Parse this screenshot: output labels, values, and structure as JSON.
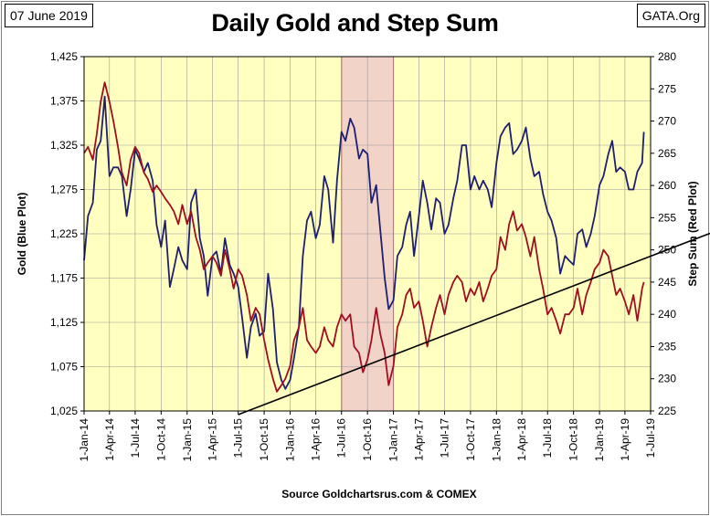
{
  "header": {
    "date": "07 June 2019",
    "source_tag": "GATA.Org"
  },
  "footer": {
    "source": "Source Goldchartsrus.com & COMEX"
  },
  "chart_data": {
    "type": "line",
    "title": "Daily Gold and Step Sum",
    "ylabel_left": "Gold   (Blue Plot)",
    "ylabel_right": "Step Sum   (Red Plot)",
    "y_left": {
      "min": 1025,
      "max": 1425,
      "ticks": [
        1025,
        1075,
        1125,
        1175,
        1225,
        1275,
        1325,
        1375,
        1425
      ],
      "tick_labels": [
        "1,025",
        "1,075",
        "1,125",
        "1,175",
        "1,225",
        "1,275",
        "1,325",
        "1,375",
        "1,425"
      ]
    },
    "y_right": {
      "min": 225,
      "max": 280,
      "ticks": [
        225,
        230,
        235,
        240,
        245,
        250,
        255,
        260,
        265,
        270,
        275,
        280
      ],
      "tick_labels": [
        "225",
        "230",
        "235",
        "240",
        "245",
        "250",
        "255",
        "260",
        "265",
        "270",
        "275",
        "280"
      ]
    },
    "x_ticks": [
      "1-Jan-14",
      "1-Apr-14",
      "1-Jul-14",
      "1-Oct-14",
      "1-Jan-15",
      "1-Apr-15",
      "1-Jul-15",
      "1-Oct-15",
      "1-Jan-16",
      "1-Apr-16",
      "1-Jul-16",
      "1-Oct-16",
      "1-Jan-17",
      "1-Apr-17",
      "1-Jul-17",
      "1-Oct-17",
      "1-Jan-18",
      "1-Apr-18",
      "1-Jul-18",
      "1-Oct-18",
      "1-Jan-19",
      "1-Apr-19",
      "1-Jul-19"
    ],
    "grid": true,
    "highlight_region": {
      "from": "2016-07-01",
      "to": "2017-01-01",
      "color": "#f2d3c8"
    },
    "trend_line": {
      "axis": "right",
      "from": {
        "x": "2015-07-01",
        "y": 225
      },
      "to": {
        "x": "2019-07-01",
        "y": 252
      },
      "color": "#000000"
    },
    "series": [
      {
        "axis": "left",
        "color": "#1f1f70",
        "points": [
          [
            "2014-01-01",
            1195
          ],
          [
            "2014-01-15",
            1245
          ],
          [
            "2014-02-01",
            1260
          ],
          [
            "2014-02-15",
            1320
          ],
          [
            "2014-03-01",
            1330
          ],
          [
            "2014-03-15",
            1380
          ],
          [
            "2014-04-01",
            1290
          ],
          [
            "2014-04-15",
            1300
          ],
          [
            "2014-05-01",
            1300
          ],
          [
            "2014-05-15",
            1290
          ],
          [
            "2014-06-01",
            1245
          ],
          [
            "2014-06-15",
            1275
          ],
          [
            "2014-07-01",
            1320
          ],
          [
            "2014-07-15",
            1310
          ],
          [
            "2014-08-01",
            1295
          ],
          [
            "2014-08-15",
            1305
          ],
          [
            "2014-09-01",
            1285
          ],
          [
            "2014-09-15",
            1235
          ],
          [
            "2014-10-01",
            1210
          ],
          [
            "2014-10-15",
            1240
          ],
          [
            "2014-11-01",
            1165
          ],
          [
            "2014-11-15",
            1185
          ],
          [
            "2014-12-01",
            1210
          ],
          [
            "2014-12-15",
            1195
          ],
          [
            "2015-01-01",
            1185
          ],
          [
            "2015-01-15",
            1260
          ],
          [
            "2015-02-01",
            1275
          ],
          [
            "2015-02-15",
            1220
          ],
          [
            "2015-03-01",
            1200
          ],
          [
            "2015-03-15",
            1155
          ],
          [
            "2015-04-01",
            1200
          ],
          [
            "2015-04-15",
            1205
          ],
          [
            "2015-05-01",
            1180
          ],
          [
            "2015-05-15",
            1220
          ],
          [
            "2015-06-01",
            1190
          ],
          [
            "2015-06-15",
            1180
          ],
          [
            "2015-07-01",
            1165
          ],
          [
            "2015-07-15",
            1130
          ],
          [
            "2015-08-01",
            1085
          ],
          [
            "2015-08-15",
            1120
          ],
          [
            "2015-09-01",
            1135
          ],
          [
            "2015-09-15",
            1110
          ],
          [
            "2015-10-01",
            1115
          ],
          [
            "2015-10-15",
            1180
          ],
          [
            "2015-11-01",
            1140
          ],
          [
            "2015-11-15",
            1080
          ],
          [
            "2015-12-01",
            1060
          ],
          [
            "2015-12-15",
            1050
          ],
          [
            "2016-01-01",
            1060
          ],
          [
            "2016-01-15",
            1085
          ],
          [
            "2016-02-01",
            1120
          ],
          [
            "2016-02-15",
            1200
          ],
          [
            "2016-03-01",
            1240
          ],
          [
            "2016-03-15",
            1250
          ],
          [
            "2016-04-01",
            1220
          ],
          [
            "2016-04-15",
            1235
          ],
          [
            "2016-05-01",
            1290
          ],
          [
            "2016-05-15",
            1275
          ],
          [
            "2016-06-01",
            1215
          ],
          [
            "2016-06-15",
            1285
          ],
          [
            "2016-07-01",
            1340
          ],
          [
            "2016-07-15",
            1330
          ],
          [
            "2016-08-01",
            1355
          ],
          [
            "2016-08-15",
            1345
          ],
          [
            "2016-09-01",
            1310
          ],
          [
            "2016-09-15",
            1320
          ],
          [
            "2016-10-01",
            1315
          ],
          [
            "2016-10-15",
            1260
          ],
          [
            "2016-11-01",
            1280
          ],
          [
            "2016-11-15",
            1230
          ],
          [
            "2016-12-01",
            1175
          ],
          [
            "2016-12-15",
            1140
          ],
          [
            "2017-01-01",
            1150
          ],
          [
            "2017-01-15",
            1200
          ],
          [
            "2017-02-01",
            1210
          ],
          [
            "2017-02-15",
            1235
          ],
          [
            "2017-03-01",
            1250
          ],
          [
            "2017-03-15",
            1200
          ],
          [
            "2017-04-01",
            1245
          ],
          [
            "2017-04-15",
            1285
          ],
          [
            "2017-05-01",
            1260
          ],
          [
            "2017-05-15",
            1230
          ],
          [
            "2017-06-01",
            1265
          ],
          [
            "2017-06-15",
            1260
          ],
          [
            "2017-07-01",
            1225
          ],
          [
            "2017-07-15",
            1235
          ],
          [
            "2017-08-01",
            1265
          ],
          [
            "2017-08-15",
            1285
          ],
          [
            "2017-09-01",
            1325
          ],
          [
            "2017-09-15",
            1325
          ],
          [
            "2017-10-01",
            1275
          ],
          [
            "2017-10-15",
            1290
          ],
          [
            "2017-11-01",
            1275
          ],
          [
            "2017-11-15",
            1285
          ],
          [
            "2017-12-01",
            1275
          ],
          [
            "2017-12-15",
            1255
          ],
          [
            "2018-01-01",
            1305
          ],
          [
            "2018-01-15",
            1335
          ],
          [
            "2018-02-01",
            1345
          ],
          [
            "2018-02-15",
            1350
          ],
          [
            "2018-03-01",
            1315
          ],
          [
            "2018-03-15",
            1320
          ],
          [
            "2018-04-01",
            1330
          ],
          [
            "2018-04-15",
            1345
          ],
          [
            "2018-05-01",
            1310
          ],
          [
            "2018-05-15",
            1290
          ],
          [
            "2018-06-01",
            1295
          ],
          [
            "2018-06-15",
            1270
          ],
          [
            "2018-07-01",
            1250
          ],
          [
            "2018-07-15",
            1240
          ],
          [
            "2018-08-01",
            1220
          ],
          [
            "2018-08-15",
            1180
          ],
          [
            "2018-09-01",
            1200
          ],
          [
            "2018-09-15",
            1195
          ],
          [
            "2018-10-01",
            1190
          ],
          [
            "2018-10-15",
            1225
          ],
          [
            "2018-11-01",
            1230
          ],
          [
            "2018-11-15",
            1210
          ],
          [
            "2018-12-01",
            1225
          ],
          [
            "2018-12-15",
            1245
          ],
          [
            "2019-01-01",
            1280
          ],
          [
            "2019-01-15",
            1290
          ],
          [
            "2019-02-01",
            1315
          ],
          [
            "2019-02-15",
            1330
          ],
          [
            "2019-03-01",
            1295
          ],
          [
            "2019-03-15",
            1300
          ],
          [
            "2019-04-01",
            1295
          ],
          [
            "2019-04-15",
            1275
          ],
          [
            "2019-05-01",
            1275
          ],
          [
            "2019-05-15",
            1295
          ],
          [
            "2019-06-01",
            1305
          ],
          [
            "2019-06-07",
            1340
          ]
        ]
      },
      {
        "axis": "right",
        "color": "#a10e1f",
        "points": [
          [
            "2014-01-01",
            265
          ],
          [
            "2014-01-15",
            266
          ],
          [
            "2014-02-01",
            264
          ],
          [
            "2014-02-15",
            268
          ],
          [
            "2014-03-01",
            273
          ],
          [
            "2014-03-15",
            276
          ],
          [
            "2014-04-01",
            273
          ],
          [
            "2014-04-15",
            270
          ],
          [
            "2014-05-01",
            266
          ],
          [
            "2014-05-15",
            262
          ],
          [
            "2014-06-01",
            260
          ],
          [
            "2014-06-15",
            264
          ],
          [
            "2014-07-01",
            266
          ],
          [
            "2014-07-15",
            265
          ],
          [
            "2014-08-01",
            262
          ],
          [
            "2014-08-15",
            261
          ],
          [
            "2014-09-01",
            259
          ],
          [
            "2014-09-15",
            260
          ],
          [
            "2014-10-01",
            259
          ],
          [
            "2014-10-15",
            258
          ],
          [
            "2014-11-01",
            257
          ],
          [
            "2014-11-15",
            256
          ],
          [
            "2014-12-01",
            254
          ],
          [
            "2014-12-15",
            257
          ],
          [
            "2015-01-01",
            254
          ],
          [
            "2015-01-15",
            256
          ],
          [
            "2015-02-01",
            252
          ],
          [
            "2015-02-15",
            250
          ],
          [
            "2015-03-01",
            247
          ],
          [
            "2015-03-15",
            248
          ],
          [
            "2015-04-01",
            249
          ],
          [
            "2015-04-15",
            248
          ],
          [
            "2015-05-01",
            246
          ],
          [
            "2015-05-15",
            250
          ],
          [
            "2015-06-01",
            247
          ],
          [
            "2015-06-15",
            244
          ],
          [
            "2015-07-01",
            247
          ],
          [
            "2015-07-15",
            246
          ],
          [
            "2015-08-01",
            243
          ],
          [
            "2015-08-15",
            239
          ],
          [
            "2015-09-01",
            241
          ],
          [
            "2015-09-15",
            240
          ],
          [
            "2015-10-01",
            236
          ],
          [
            "2015-10-15",
            233
          ],
          [
            "2015-11-01",
            230
          ],
          [
            "2015-11-15",
            228
          ],
          [
            "2015-12-01",
            229
          ],
          [
            "2015-12-15",
            230
          ],
          [
            "2016-01-01",
            232
          ],
          [
            "2016-01-15",
            236
          ],
          [
            "2016-02-01",
            238
          ],
          [
            "2016-02-15",
            241
          ],
          [
            "2016-03-01",
            236
          ],
          [
            "2016-03-15",
            235
          ],
          [
            "2016-04-01",
            234
          ],
          [
            "2016-04-15",
            235
          ],
          [
            "2016-05-01",
            238
          ],
          [
            "2016-05-15",
            236
          ],
          [
            "2016-06-01",
            235
          ],
          [
            "2016-06-15",
            238
          ],
          [
            "2016-07-01",
            240
          ],
          [
            "2016-07-15",
            239
          ],
          [
            "2016-08-01",
            240
          ],
          [
            "2016-08-15",
            235
          ],
          [
            "2016-09-01",
            234
          ],
          [
            "2016-09-15",
            231
          ],
          [
            "2016-10-01",
            233
          ],
          [
            "2016-10-15",
            236
          ],
          [
            "2016-11-01",
            241
          ],
          [
            "2016-11-15",
            237
          ],
          [
            "2016-12-01",
            234
          ],
          [
            "2016-12-15",
            229
          ],
          [
            "2017-01-01",
            232
          ],
          [
            "2017-01-15",
            238
          ],
          [
            "2017-02-01",
            240
          ],
          [
            "2017-02-15",
            243
          ],
          [
            "2017-03-01",
            244
          ],
          [
            "2017-03-15",
            241
          ],
          [
            "2017-04-01",
            242
          ],
          [
            "2017-04-15",
            239
          ],
          [
            "2017-05-01",
            235
          ],
          [
            "2017-05-15",
            238
          ],
          [
            "2017-06-01",
            241
          ],
          [
            "2017-06-15",
            243
          ],
          [
            "2017-07-01",
            240
          ],
          [
            "2017-07-15",
            243
          ],
          [
            "2017-08-01",
            245
          ],
          [
            "2017-08-15",
            246
          ],
          [
            "2017-09-01",
            245
          ],
          [
            "2017-09-15",
            242
          ],
          [
            "2017-10-01",
            244
          ],
          [
            "2017-10-15",
            243
          ],
          [
            "2017-11-01",
            245
          ],
          [
            "2017-11-15",
            242
          ],
          [
            "2017-12-01",
            244
          ],
          [
            "2017-12-15",
            246
          ],
          [
            "2018-01-01",
            247
          ],
          [
            "2018-01-15",
            252
          ],
          [
            "2018-02-01",
            250
          ],
          [
            "2018-02-15",
            254
          ],
          [
            "2018-03-01",
            256
          ],
          [
            "2018-03-15",
            253
          ],
          [
            "2018-04-01",
            254
          ],
          [
            "2018-04-15",
            252
          ],
          [
            "2018-05-01",
            249
          ],
          [
            "2018-05-15",
            252
          ],
          [
            "2018-06-01",
            247
          ],
          [
            "2018-06-15",
            244
          ],
          [
            "2018-07-01",
            240
          ],
          [
            "2018-07-15",
            241
          ],
          [
            "2018-08-01",
            239
          ],
          [
            "2018-08-15",
            237
          ],
          [
            "2018-09-01",
            240
          ],
          [
            "2018-09-15",
            240
          ],
          [
            "2018-10-01",
            241
          ],
          [
            "2018-10-15",
            244
          ],
          [
            "2018-11-01",
            240
          ],
          [
            "2018-11-15",
            243
          ],
          [
            "2018-12-01",
            245
          ],
          [
            "2018-12-15",
            247
          ],
          [
            "2019-01-01",
            248
          ],
          [
            "2019-01-15",
            250
          ],
          [
            "2019-02-01",
            249
          ],
          [
            "2019-02-15",
            246
          ],
          [
            "2019-03-01",
            243
          ],
          [
            "2019-03-15",
            244
          ],
          [
            "2019-04-01",
            242
          ],
          [
            "2019-04-15",
            240
          ],
          [
            "2019-05-01",
            243
          ],
          [
            "2019-05-15",
            239
          ],
          [
            "2019-06-01",
            244
          ],
          [
            "2019-06-07",
            245
          ]
        ]
      }
    ]
  }
}
